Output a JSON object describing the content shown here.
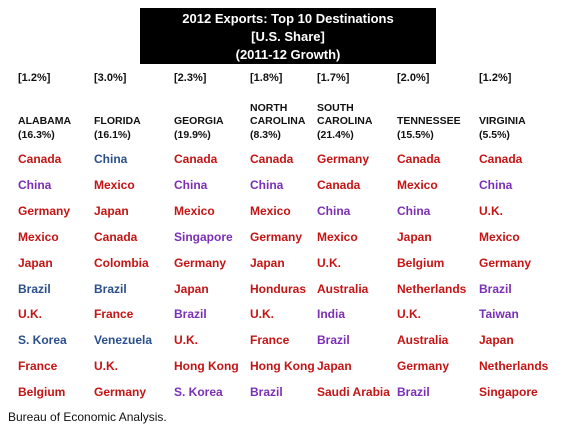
{
  "title": [
    "2012 Exports: Top 10  Destinations",
    "[U.S. Share]",
    "(2011-12 Growth)"
  ],
  "caption": "Bureau of Economic Analysis.",
  "colors": {
    "red": "#c41414",
    "purple": "#7a2fb5",
    "blue": "#2a4f8a"
  },
  "chart_data": {
    "type": "table",
    "title": "2012 Exports: Top 10  Destinations",
    "columns": [
      {
        "state_line1": "ALABAMA",
        "state_line2": "",
        "share": "[1.2%]",
        "growth": "(16.3%)",
        "countries": [
          {
            "name": "Canada",
            "color": "red"
          },
          {
            "name": "China",
            "color": "purple"
          },
          {
            "name": "Germany",
            "color": "red"
          },
          {
            "name": "Mexico",
            "color": "red"
          },
          {
            "name": "Japan",
            "color": "red"
          },
          {
            "name": "Brazil",
            "color": "blue"
          },
          {
            "name": "U.K.",
            "color": "red"
          },
          {
            "name": "S. Korea",
            "color": "blue"
          },
          {
            "name": "France",
            "color": "red"
          },
          {
            "name": "Belgium",
            "color": "red"
          }
        ]
      },
      {
        "state_line1": "FLORIDA",
        "state_line2": "",
        "share": "[3.0%]",
        "growth": "(16.1%)",
        "countries": [
          {
            "name": "China",
            "color": "blue"
          },
          {
            "name": "Mexico",
            "color": "red"
          },
          {
            "name": "Japan",
            "color": "red"
          },
          {
            "name": "Canada",
            "color": "red"
          },
          {
            "name": "Colombia",
            "color": "red"
          },
          {
            "name": "Brazil",
            "color": "blue"
          },
          {
            "name": "France",
            "color": "red"
          },
          {
            "name": "Venezuela",
            "color": "blue"
          },
          {
            "name": "U.K.",
            "color": "red"
          },
          {
            "name": "Germany",
            "color": "red"
          }
        ]
      },
      {
        "state_line1": "GEORGIA",
        "state_line2": "",
        "share": "[2.3%]",
        "growth": "(19.9%)",
        "countries": [
          {
            "name": "Canada",
            "color": "red"
          },
          {
            "name": "China",
            "color": "purple"
          },
          {
            "name": "Mexico",
            "color": "red"
          },
          {
            "name": "Singapore",
            "color": "purple"
          },
          {
            "name": "Germany",
            "color": "red"
          },
          {
            "name": "Japan",
            "color": "red"
          },
          {
            "name": "Brazil",
            "color": "purple"
          },
          {
            "name": "U.K.",
            "color": "red"
          },
          {
            "name": "Hong Kong",
            "color": "red"
          },
          {
            "name": "S. Korea",
            "color": "purple"
          }
        ]
      },
      {
        "state_line1": "NORTH",
        "state_line2": "CAROLINA",
        "share": "[1.8%]",
        "growth": "(8.3%)",
        "countries": [
          {
            "name": "Canada",
            "color": "red"
          },
          {
            "name": "China",
            "color": "purple"
          },
          {
            "name": "Mexico",
            "color": "red"
          },
          {
            "name": "Germany",
            "color": "red"
          },
          {
            "name": "Japan",
            "color": "red"
          },
          {
            "name": "Honduras",
            "color": "red"
          },
          {
            "name": "U.K.",
            "color": "red"
          },
          {
            "name": "France",
            "color": "red"
          },
          {
            "name": "Hong Kong",
            "color": "red"
          },
          {
            "name": "Brazil",
            "color": "purple"
          }
        ]
      },
      {
        "state_line1": "SOUTH",
        "state_line2": "CAROLINA",
        "share": "[1.7%]",
        "growth": "(21.4%)",
        "countries": [
          {
            "name": "Germany",
            "color": "red"
          },
          {
            "name": "Canada",
            "color": "red"
          },
          {
            "name": "China",
            "color": "purple"
          },
          {
            "name": "Mexico",
            "color": "red"
          },
          {
            "name": "U.K.",
            "color": "red"
          },
          {
            "name": "Australia",
            "color": "red"
          },
          {
            "name": "India",
            "color": "purple"
          },
          {
            "name": "Brazil",
            "color": "purple"
          },
          {
            "name": "Japan",
            "color": "red"
          },
          {
            "name": "Saudi Arabia",
            "color": "red"
          }
        ]
      },
      {
        "state_line1": "TENNESSEE",
        "state_line2": "",
        "share": "[2.0%]",
        "growth": "(15.5%)",
        "countries": [
          {
            "name": "Canada",
            "color": "red"
          },
          {
            "name": "Mexico",
            "color": "red"
          },
          {
            "name": "China",
            "color": "purple"
          },
          {
            "name": "Japan",
            "color": "red"
          },
          {
            "name": "Belgium",
            "color": "red"
          },
          {
            "name": "Netherlands",
            "color": "red"
          },
          {
            "name": "U.K.",
            "color": "red"
          },
          {
            "name": "Australia",
            "color": "red"
          },
          {
            "name": "Germany",
            "color": "red"
          },
          {
            "name": "Brazil",
            "color": "purple"
          }
        ]
      },
      {
        "state_line1": "VIRGINIA",
        "state_line2": "",
        "share": "[1.2%]",
        "growth": "(5.5%)",
        "countries": [
          {
            "name": "Canada",
            "color": "red"
          },
          {
            "name": "China",
            "color": "purple"
          },
          {
            "name": "U.K.",
            "color": "red"
          },
          {
            "name": "Mexico",
            "color": "red"
          },
          {
            "name": "Germany",
            "color": "red"
          },
          {
            "name": "Brazil",
            "color": "purple"
          },
          {
            "name": "Taiwan",
            "color": "purple"
          },
          {
            "name": "Japan",
            "color": "red"
          },
          {
            "name": "Netherlands",
            "color": "red"
          },
          {
            "name": "Singapore",
            "color": "red"
          }
        ]
      }
    ]
  }
}
